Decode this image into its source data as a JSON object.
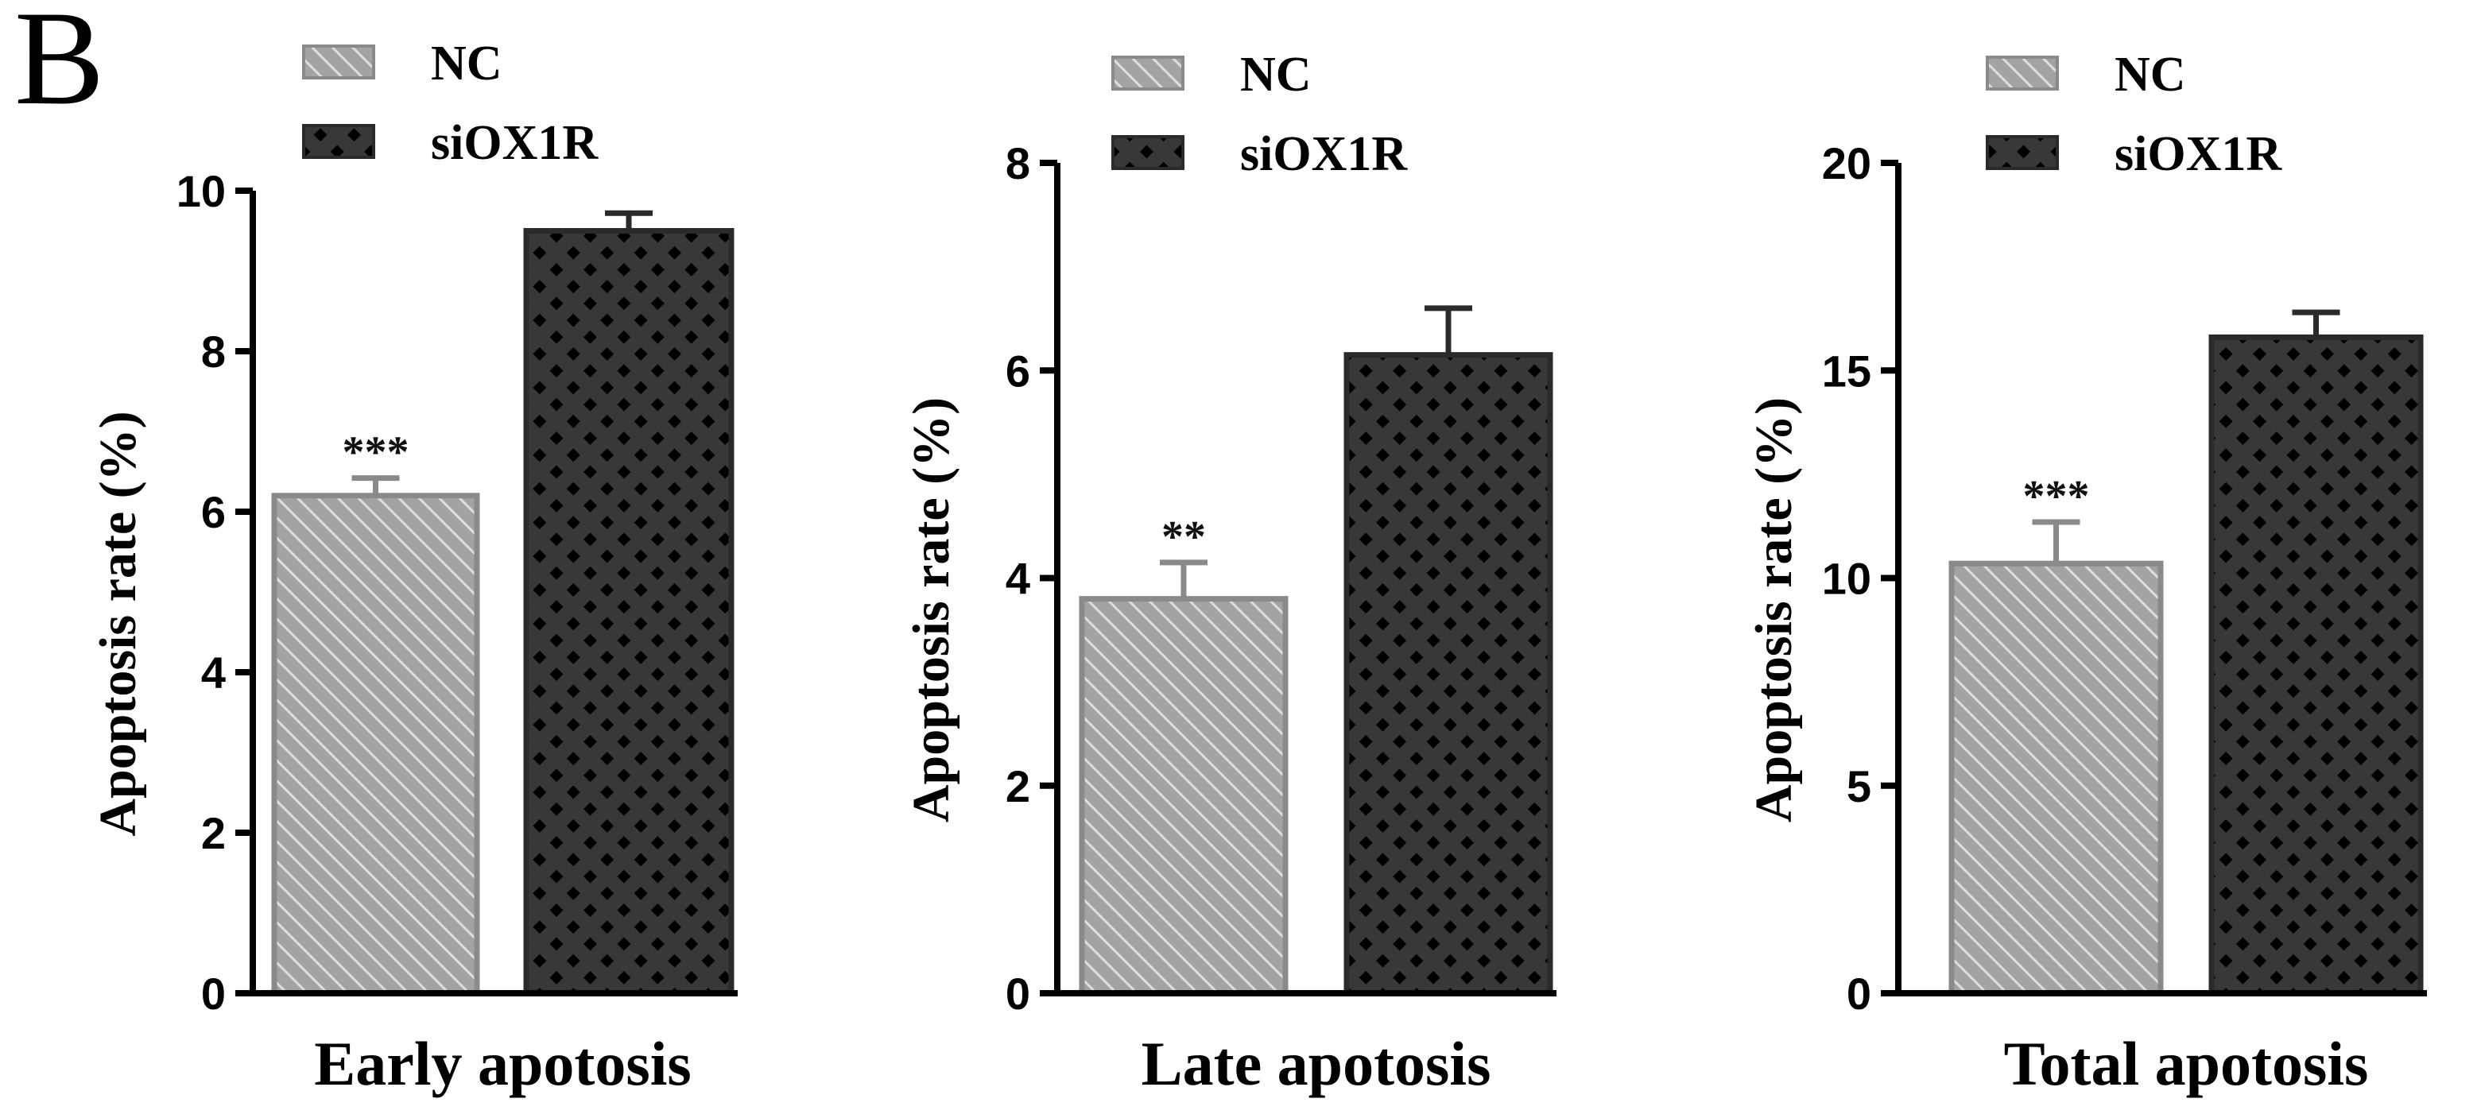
{
  "figure": {
    "panel_label": "B"
  },
  "colors": {
    "nc_fill": "#a3a3a3",
    "nc_stripe": "#dedede",
    "nc_error": "#8a8a8a",
    "si_fill": "#383838",
    "si_dot": "#000000",
    "si_error": "#2a2a2a"
  },
  "chart_data": [
    {
      "type": "bar",
      "categories": [
        "NC",
        "siOX1R"
      ],
      "values": [
        6.2,
        9.5
      ],
      "errors": [
        0.22,
        0.22
      ],
      "annotations": [
        "***",
        ""
      ],
      "xlabel": "Early apotosis",
      "ylabel": "Apoptosis rate (%)",
      "ylim": [
        0,
        10
      ],
      "yticks": [
        0,
        2,
        4,
        6,
        8,
        10
      ],
      "legend": [
        "NC",
        "siOX1R"
      ],
      "legend_position": "top",
      "grid": false
    },
    {
      "type": "bar",
      "categories": [
        "NC",
        "siOX1R"
      ],
      "values": [
        3.8,
        6.15
      ],
      "errors": [
        0.35,
        0.45
      ],
      "annotations": [
        "**",
        ""
      ],
      "xlabel": "Late apotosis",
      "ylabel": "Apoptosis rate (%)",
      "ylim": [
        0,
        8
      ],
      "yticks": [
        0,
        2,
        4,
        6,
        8
      ],
      "legend": [
        "NC",
        "siOX1R"
      ],
      "legend_position": "top",
      "grid": false
    },
    {
      "type": "bar",
      "categories": [
        "NC",
        "siOX1R"
      ],
      "values": [
        10.35,
        15.8
      ],
      "errors": [
        1.0,
        0.6
      ],
      "annotations": [
        "***",
        ""
      ],
      "xlabel": "Total apotosis",
      "ylabel": "Apoptosis rate (%)",
      "ylim": [
        0,
        20
      ],
      "yticks": [
        0,
        5,
        10,
        15,
        20
      ],
      "legend": [
        "NC",
        "siOX1R"
      ],
      "legend_position": "top",
      "grid": false
    }
  ]
}
